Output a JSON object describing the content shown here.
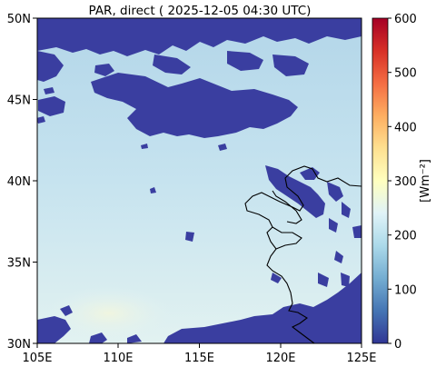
{
  "title": "PAR, direct ( 2025-12-05 04:30 UTC)",
  "map": {
    "lon_ticks": [
      "105E",
      "110E",
      "115E",
      "120E",
      "125E"
    ],
    "lat_ticks": [
      "50N",
      "45N",
      "40N",
      "35N",
      "30N"
    ],
    "lon_range": [
      105,
      125
    ],
    "lat_range": [
      30,
      50
    ]
  },
  "colorbar": {
    "label": "[Wm⁻²]",
    "ticks": [
      "600",
      "500",
      "400",
      "300",
      "200",
      "100",
      "0"
    ],
    "range": [
      0,
      600
    ],
    "colormap": "RdYlBu_r",
    "colors": [
      "#313695",
      "#4575b4",
      "#74add1",
      "#abd9e9",
      "#e0f3f8",
      "#ffffbf",
      "#fee090",
      "#fdae61",
      "#f46d43",
      "#d73027",
      "#a50026"
    ]
  },
  "colors": {
    "cloud_mask": "#3a3ea0",
    "field_north": "#b6d8ea",
    "field_south": "#dbeff3",
    "coastline": "#000000"
  }
}
